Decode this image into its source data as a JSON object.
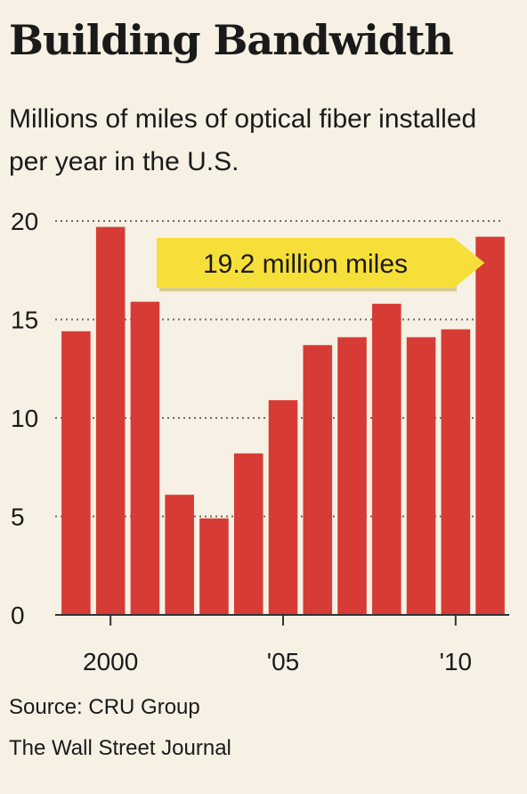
{
  "chart_data": {
    "type": "bar",
    "title": "Building Bandwidth",
    "subtitle": "Millions of miles of optical fiber installed per year in the U.S.",
    "categories": [
      "1999",
      "2000",
      "2001",
      "2002",
      "2003",
      "2004",
      "2005",
      "2006",
      "2007",
      "2008",
      "2009",
      "2010",
      "2011"
    ],
    "values": [
      14.4,
      19.7,
      15.9,
      6.1,
      4.9,
      8.2,
      10.9,
      13.7,
      14.1,
      15.8,
      14.1,
      14.5,
      19.2
    ],
    "xtick_labels": [
      {
        "category": "2000",
        "label": "2000"
      },
      {
        "category": "2005",
        "label": "'05"
      },
      {
        "category": "2010",
        "label": "'10"
      }
    ],
    "yticks": [
      0,
      5,
      10,
      15,
      20
    ],
    "ylim": [
      0,
      20
    ],
    "xlabel": "",
    "ylabel": "",
    "grid": "dotted horizontal",
    "annotation": {
      "text": "19.2 million miles",
      "category": "2011"
    },
    "bar_color": "#d63b36",
    "annotation_color": "#f7df3a"
  },
  "footer": {
    "source": "Source: CRU Group",
    "publisher": "The Wall Street Journal"
  }
}
